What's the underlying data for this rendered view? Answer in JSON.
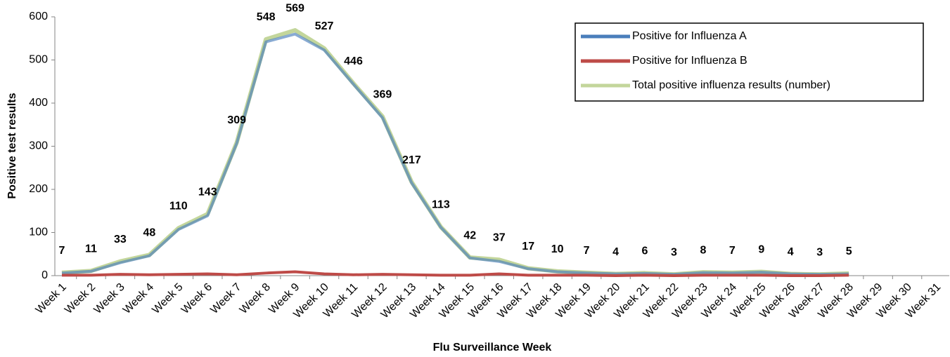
{
  "chart_data": {
    "type": "line",
    "x_label": "Flu  Surveillance Week",
    "y_label": "Positive test results",
    "categories": [
      "Week 1",
      "Week 2",
      "Week 3",
      "Week 4",
      "Week 5",
      "Week 6",
      "Week 7",
      "Week 8",
      "Week 9",
      "Week 10",
      "Week 11",
      "Week 12",
      "Week 13",
      "Week 14",
      "Week 15",
      "Week 16",
      "Week 17",
      "Week 18",
      "Week 19",
      "Week 20",
      "Week 21",
      "Week 22",
      "Week 23",
      "Week 24",
      "Week 25",
      "Week 26",
      "Week 27",
      "Week 28",
      "Week 29",
      "Week 30",
      "Week 31"
    ],
    "series": [
      {
        "name": "Positive for Influenza A",
        "color": "#4a7ebb",
        "values": [
          6,
          10,
          30,
          46,
          107,
          139,
          307,
          542,
          560,
          523,
          444,
          366,
          215,
          112,
          41,
          33,
          16,
          9,
          6,
          4,
          5,
          3,
          7,
          6,
          8,
          4,
          3,
          4,
          null,
          null,
          null
        ]
      },
      {
        "name": "Positive for Influenza B",
        "color": "#be4b48",
        "values": [
          1,
          1,
          3,
          2,
          3,
          4,
          2,
          6,
          9,
          4,
          2,
          3,
          2,
          1,
          1,
          4,
          1,
          1,
          1,
          0,
          1,
          0,
          1,
          1,
          1,
          0,
          0,
          1,
          null,
          null,
          null
        ]
      },
      {
        "name": "Total positive influenza results (number)",
        "color": "#c3d69b",
        "show_labels": true,
        "values": [
          7,
          11,
          33,
          48,
          110,
          143,
          309,
          548,
          569,
          527,
          446,
          369,
          217,
          113,
          42,
          37,
          17,
          10,
          7,
          4,
          6,
          3,
          8,
          7,
          9,
          4,
          3,
          5,
          null,
          null,
          null
        ]
      }
    ],
    "ylim": [
      0,
      600
    ],
    "yticks": [
      0,
      100,
      200,
      300,
      400,
      500,
      600
    ],
    "grid": false,
    "legend": "top-right"
  }
}
